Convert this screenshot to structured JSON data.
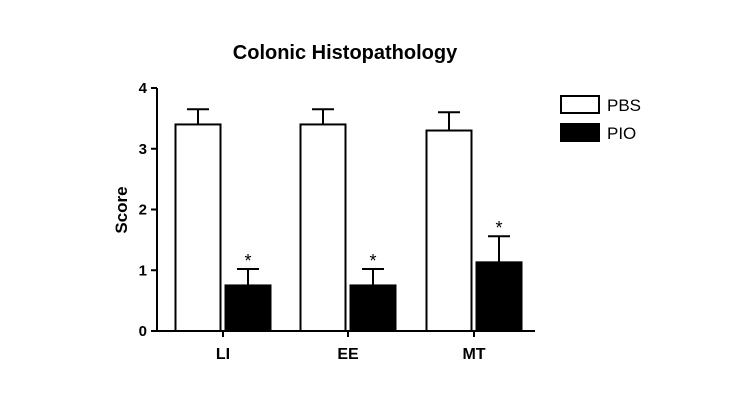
{
  "chart_data": {
    "type": "bar",
    "title": "Colonic Histopathology",
    "xlabel": "",
    "ylabel": "Score",
    "ylim": [
      0,
      4
    ],
    "yticks": [
      0,
      1,
      2,
      3,
      4
    ],
    "categories": [
      "LI",
      "EE",
      "MT"
    ],
    "series": [
      {
        "name": "PBS",
        "values": [
          3.4,
          3.4,
          3.3
        ],
        "errors": [
          0.25,
          0.25,
          0.3
        ],
        "fill": "#ffffff",
        "significance": [
          "",
          "",
          ""
        ]
      },
      {
        "name": "PIO",
        "values": [
          0.75,
          0.75,
          1.13
        ],
        "errors": [
          0.27,
          0.27,
          0.43
        ],
        "fill": "#000000",
        "significance": [
          "*",
          "*",
          "*"
        ]
      }
    ],
    "legend_position": "right",
    "grid": false
  }
}
